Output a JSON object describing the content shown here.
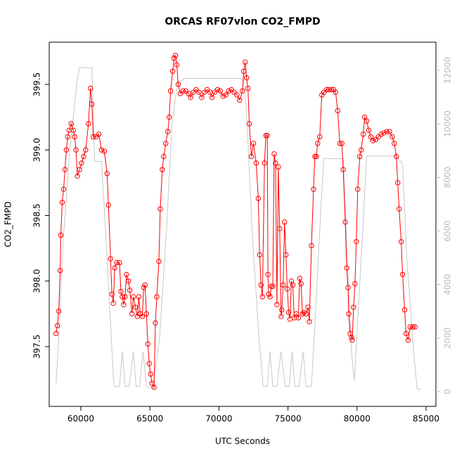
{
  "chart_data": {
    "type": "line",
    "title": "ORCAS RF07vlon CO2_FMPD",
    "x_label": "UTC Seconds",
    "y_label": "CO2_FMPD",
    "xlim": [
      57709,
      85713
    ],
    "xticks": [
      60000,
      65000,
      70000,
      75000,
      80000,
      85000
    ],
    "ylim": [
      397.044,
      399.822
    ],
    "yticks": [
      397.5,
      {
        "value": 398,
        "label": "398.0"
      },
      398.5,
      {
        "value": 399,
        "label": "399.0"
      },
      399.5
    ],
    "y2lim": [
      -551,
      13050
    ],
    "y2ticks": [
      0,
      2000,
      4000,
      6000,
      8000,
      10000,
      12000
    ],
    "series": [
      {
        "color": "#ff0000",
        "markers": true,
        "x": [
          58200,
          58300,
          58400,
          58500,
          58550,
          58650,
          58750,
          58850,
          58950,
          59050,
          59150,
          59300,
          59450,
          59550,
          59650,
          59750,
          59900,
          60050,
          60200,
          60350,
          60550,
          60700,
          60800,
          60900,
          61100,
          61300,
          61500,
          61700,
          61900,
          62000,
          62150,
          62250,
          62350,
          62450,
          62600,
          62800,
          62900,
          63000,
          63100,
          63200,
          63300,
          63450,
          63550,
          63700,
          63800,
          63950,
          64100,
          64200,
          64300,
          64450,
          64550,
          64650,
          64750,
          64850,
          64950,
          65050,
          65150,
          65300,
          65400,
          65500,
          65650,
          65750,
          65900,
          66000,
          66150,
          66300,
          66400,
          66500,
          66650,
          66750,
          66850,
          66950,
          67050,
          67200,
          67400,
          67600,
          67800,
          67950,
          68150,
          68350,
          68550,
          68750,
          68950,
          69150,
          69350,
          69500,
          69700,
          69900,
          70100,
          70300,
          70500,
          70700,
          70900,
          71100,
          71300,
          71500,
          71700,
          71800,
          71900,
          72000,
          72100,
          72200,
          72350,
          72500,
          72700,
          72850,
          72950,
          73050,
          73150,
          73300,
          73400,
          73500,
          73550,
          73600,
          73700,
          73800,
          73900,
          74000,
          74100,
          74200,
          74300,
          74400,
          74500,
          74550,
          74650,
          74750,
          74850,
          74950,
          75050,
          75150,
          75250,
          75350,
          75450,
          75600,
          75750,
          75850,
          75950,
          76050,
          76150,
          76300,
          76450,
          76550,
          76700,
          76850,
          76950,
          77050,
          77150,
          77300,
          77450,
          77600,
          77800,
          77950,
          78150,
          78300,
          78450,
          78600,
          78750,
          78900,
          79000,
          79150,
          79250,
          79350,
          79400,
          79500,
          79600,
          79650,
          79750,
          79850,
          79950,
          80050,
          80200,
          80300,
          80450,
          80550,
          80700,
          80850,
          81000,
          81150,
          81350,
          81550,
          81750,
          81950,
          82150,
          82350,
          82550,
          82700,
          82850,
          82950,
          83050,
          83200,
          83300,
          83450,
          83550,
          83700,
          83850,
          84050,
          84200
        ],
        "values": [
          397.6,
          397.66,
          397.77,
          398.08,
          398.35,
          398.6,
          398.7,
          398.85,
          399.0,
          399.1,
          399.15,
          399.2,
          399.15,
          399.1,
          399.0,
          398.8,
          398.85,
          398.9,
          398.95,
          399.0,
          399.2,
          399.47,
          399.35,
          399.1,
          399.1,
          399.12,
          399.0,
          398.99,
          398.82,
          398.58,
          398.17,
          397.9,
          397.83,
          398.1,
          398.14,
          398.14,
          397.92,
          397.88,
          397.82,
          397.88,
          398.05,
          398.0,
          397.93,
          397.75,
          397.88,
          397.8,
          397.73,
          397.88,
          397.75,
          397.73,
          397.95,
          397.97,
          397.75,
          397.52,
          397.37,
          397.29,
          397.22,
          397.19,
          397.68,
          397.88,
          398.15,
          398.55,
          398.85,
          398.95,
          399.05,
          399.14,
          399.25,
          399.45,
          399.6,
          399.7,
          399.72,
          399.65,
          399.5,
          399.43,
          399.45,
          399.45,
          399.43,
          399.4,
          399.44,
          399.46,
          399.44,
          399.4,
          399.44,
          399.46,
          399.44,
          399.4,
          399.44,
          399.46,
          399.45,
          399.41,
          399.42,
          399.45,
          399.46,
          399.44,
          399.42,
          399.38,
          399.45,
          399.6,
          399.67,
          399.55,
          399.47,
          399.2,
          398.95,
          399.05,
          398.9,
          398.63,
          398.2,
          397.97,
          397.88,
          398.9,
          399.11,
          399.11,
          398.05,
          397.9,
          397.88,
          397.96,
          397.96,
          398.97,
          398.9,
          397.82,
          398.87,
          398.4,
          397.73,
          397.78,
          397.97,
          398.45,
          398.2,
          397.94,
          397.76,
          397.71,
          398.0,
          397.97,
          397.72,
          397.75,
          397.72,
          398.02,
          397.98,
          397.75,
          397.76,
          397.75,
          397.8,
          397.69,
          398.27,
          398.7,
          398.95,
          398.95,
          399.05,
          399.1,
          399.42,
          399.44,
          399.46,
          399.46,
          399.46,
          399.46,
          399.44,
          399.3,
          399.05,
          399.05,
          398.85,
          398.45,
          398.1,
          397.95,
          397.75,
          397.6,
          397.57,
          397.55,
          397.8,
          397.98,
          398.3,
          398.7,
          398.95,
          399.0,
          399.12,
          399.25,
          399.22,
          399.15,
          399.1,
          399.07,
          399.08,
          399.1,
          399.12,
          399.13,
          399.14,
          399.14,
          399.1,
          399.05,
          398.95,
          398.75,
          398.55,
          398.3,
          398.05,
          397.78,
          397.6,
          397.55,
          397.65,
          397.65,
          397.65
        ]
      },
      {
        "color": "#c8c8c8",
        "axis": "y2",
        "x": [
          58200,
          58400,
          58700,
          59200,
          59700,
          59900,
          60800,
          61000,
          61500,
          61900,
          62200,
          62400,
          62800,
          63000,
          63200,
          63500,
          63800,
          64000,
          64250,
          64500,
          64750,
          65200,
          65700,
          66200,
          66600,
          67000,
          67500,
          71500,
          71800,
          72000,
          72400,
          72900,
          73200,
          73500,
          73700,
          73900,
          74200,
          74500,
          74800,
          75100,
          75300,
          75500,
          75800,
          76100,
          76300,
          76700,
          77000,
          77400,
          77600,
          79000,
          79300,
          79600,
          79800,
          80200,
          80700,
          82800,
          83300,
          83600,
          84100,
          84350,
          84600
        ],
        "values": [
          300,
          2000,
          5500,
          9000,
          11500,
          12100,
          12100,
          8600,
          8600,
          5000,
          2000,
          200,
          200,
          1500,
          200,
          200,
          1500,
          200,
          200,
          1500,
          200,
          100,
          2000,
          6000,
          10000,
          11500,
          11700,
          11700,
          11600,
          10500,
          6000,
          2000,
          200,
          200,
          1500,
          200,
          200,
          1500,
          200,
          200,
          1500,
          200,
          200,
          1500,
          200,
          200,
          3000,
          7000,
          8700,
          8700,
          5000,
          1500,
          400,
          4000,
          8800,
          8800,
          8500,
          5000,
          1500,
          100,
          100
        ]
      }
    ]
  }
}
